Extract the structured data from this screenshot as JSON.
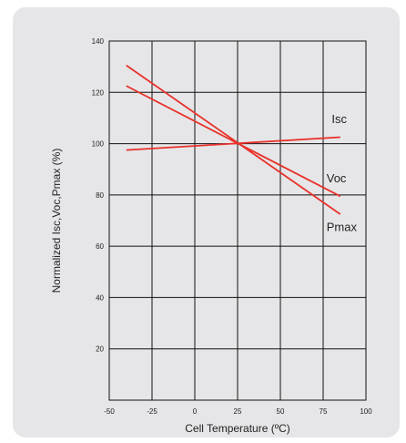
{
  "chart_data": {
    "type": "line",
    "xlabel": "Cell Temperature (ºC)",
    "ylabel": "Normalized Isc,Voc,Pmax (%)",
    "xlim": [
      -50,
      100
    ],
    "ylim": [
      0,
      140
    ],
    "xticks": [
      -50,
      -25,
      0,
      25,
      50,
      75,
      100
    ],
    "yticks": [
      20,
      40,
      60,
      80,
      100,
      120,
      140
    ],
    "grid": true,
    "series": [
      {
        "name": "Isc",
        "color": "#e8312a",
        "x": [
          -40,
          85
        ],
        "y": [
          97.5,
          102.5
        ],
        "label_at": [
          80,
          108
        ]
      },
      {
        "name": "Voc",
        "color": "#e8312a",
        "x": [
          -40,
          85
        ],
        "y": [
          122.5,
          79.5
        ],
        "label_at": [
          77,
          85
        ]
      },
      {
        "name": "Pmax",
        "color": "#e8312a",
        "x": [
          -40,
          85
        ],
        "y": [
          130.5,
          72.5
        ],
        "label_at": [
          77,
          66
        ]
      }
    ]
  }
}
